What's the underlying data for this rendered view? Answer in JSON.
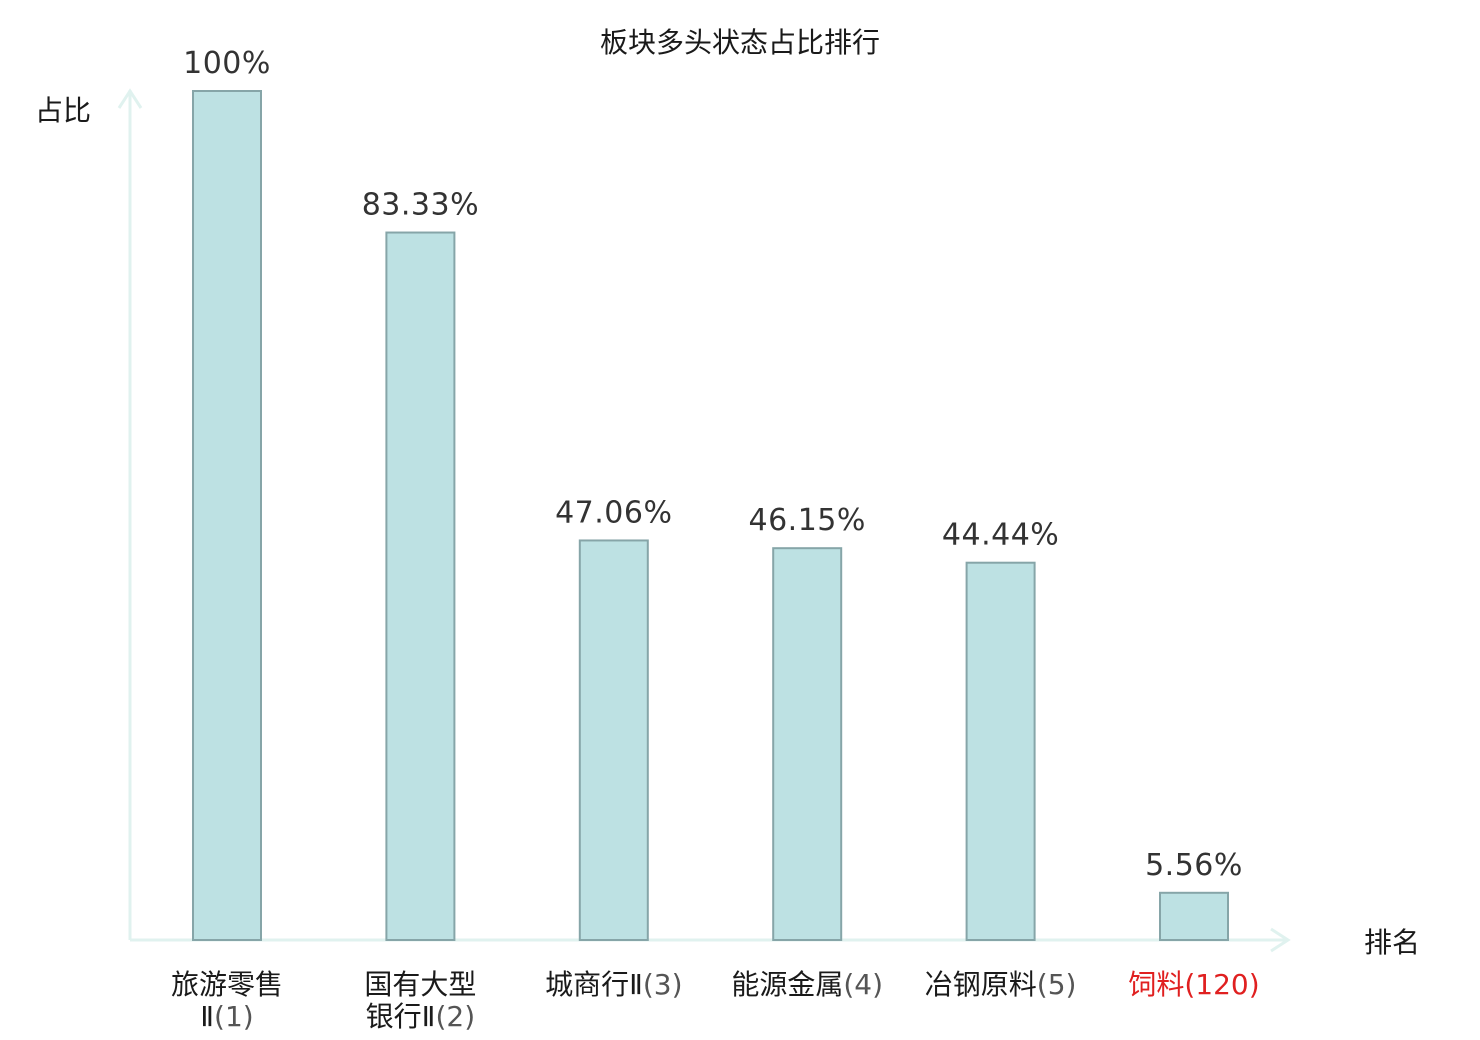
{
  "chart_data": {
    "type": "bar",
    "title": "板块多头状态占比排行",
    "ylabel": "占比",
    "xlabel": "排名",
    "ylim": [
      0,
      100
    ],
    "grid": false,
    "categories": [
      {
        "name_lines": [
          "旅游零售",
          "Ⅱ"
        ],
        "rank": "(1)",
        "highlight": false
      },
      {
        "name_lines": [
          "国有大型",
          "银行Ⅱ"
        ],
        "rank": "(2)",
        "highlight": false
      },
      {
        "name_lines": [
          "城商行Ⅱ"
        ],
        "rank": "(3)",
        "highlight": false
      },
      {
        "name_lines": [
          "能源金属"
        ],
        "rank": "(4)",
        "highlight": false
      },
      {
        "name_lines": [
          "冶钢原料"
        ],
        "rank": "(5)",
        "highlight": false
      },
      {
        "name_lines": [
          "饲料"
        ],
        "rank": "(120)",
        "highlight": true
      }
    ],
    "values": [
      100,
      83.33,
      47.06,
      46.15,
      44.44,
      5.56
    ],
    "value_labels": [
      "100%",
      "83.33%",
      "47.06%",
      "46.15%",
      "44.44%",
      "5.56%"
    ],
    "colors": {
      "bar_fill": "#bde1e3",
      "bar_stroke": "#86a5a8",
      "axis": "#e0f2ef",
      "text": "#1a1a1a",
      "value_text": "#333333",
      "rank_text": "#555555",
      "highlight": "#e02020"
    }
  }
}
